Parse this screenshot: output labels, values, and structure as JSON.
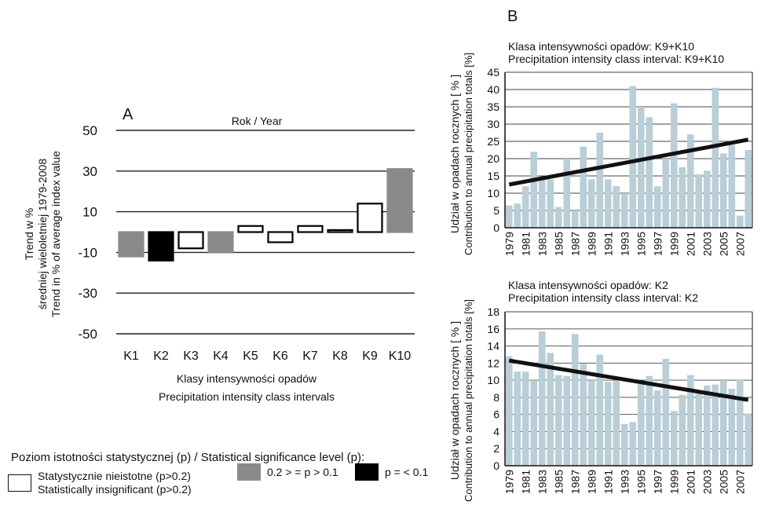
{
  "panel_labels": {
    "a": "A",
    "b": "B"
  },
  "legend": {
    "title": "Poziom istotności statystycznej (p) / Statistical significance level (p):",
    "items": [
      {
        "label_pl": "Statystycznie nieistotne (p>0.2)",
        "label_en": "Statistically insignificant (p>0.2)",
        "swatch": "#ffffff"
      },
      {
        "label": "0.2 > = p > 0.1",
        "swatch": "#8a8a8a"
      },
      {
        "label": "p = < 0.1",
        "swatch": "#000000"
      }
    ]
  },
  "chart_data": [
    {
      "type": "bar",
      "panel": "A",
      "title": "Rok / Year",
      "ylabel_lines": [
        "Trend w %",
        "średniej wieloletniej 1979-2008",
        "Trend in % of average index value"
      ],
      "xlabel_lines": [
        "Klasy intensywności opadów",
        "Precipitation intensity class intervals"
      ],
      "categories": [
        "K1",
        "K2",
        "K3",
        "K4",
        "K5",
        "K6",
        "K7",
        "K8",
        "K9",
        "K10"
      ],
      "values": [
        -12,
        -14,
        -8,
        -10,
        3,
        -5,
        3,
        1,
        14,
        31
      ],
      "significance": [
        "grey",
        "black",
        "white",
        "grey",
        "white",
        "white",
        "white",
        "white",
        "white",
        "grey"
      ],
      "colors": {
        "white": "#ffffff",
        "grey": "#8a8a8a",
        "black": "#000000"
      },
      "ylim": [
        -50,
        50
      ],
      "yticks": [
        50,
        30,
        10,
        -10,
        -30,
        -50
      ],
      "grid": true
    },
    {
      "type": "bar",
      "panel": "B-top",
      "title_lines": [
        "Klasa intensywności opadów: K9+K10",
        "Precipitation intensity class interval: K9+K10"
      ],
      "ylabel_lines": [
        "Udział w opadach rocznych [ % ]",
        "Contribution to annual precipitation totals [%]"
      ],
      "x": [
        1979,
        1980,
        1981,
        1982,
        1983,
        1984,
        1985,
        1986,
        1987,
        1988,
        1989,
        1990,
        1991,
        1992,
        1993,
        1994,
        1995,
        1996,
        1997,
        1998,
        1999,
        2000,
        2001,
        2002,
        2003,
        2004,
        2005,
        2006,
        2007,
        2008
      ],
      "x_tick_labels": [
        "1979",
        "1981",
        "1983",
        "1985",
        "1987",
        "1989",
        "1991",
        "1993",
        "1995",
        "1997",
        "1999",
        "2001",
        "2003",
        "2005",
        "2007"
      ],
      "values": [
        6.5,
        7,
        12,
        22,
        14,
        14,
        6,
        20,
        5,
        23.5,
        14,
        27.5,
        14,
        12,
        10,
        41,
        35,
        32,
        12,
        20,
        36,
        17.5,
        27,
        15.5,
        16.5,
        40.5,
        21.5,
        24,
        3.5,
        22.5
      ],
      "trend": {
        "start": 12.5,
        "end": 25.5
      },
      "ylim": [
        0,
        45
      ],
      "yticks": [
        0,
        5,
        10,
        15,
        20,
        25,
        30,
        35,
        40,
        45
      ],
      "bar_color": "#b9ced6",
      "grid": true
    },
    {
      "type": "bar",
      "panel": "B-bottom",
      "title_lines": [
        "Klasa intensywności opadów: K2",
        "Precipitation intensity class interval: K2"
      ],
      "ylabel_lines": [
        "Udział w opadach rocznych [ % ]",
        "Contribution to annual precipitation totals [%]"
      ],
      "x": [
        1979,
        1980,
        1981,
        1982,
        1983,
        1984,
        1985,
        1986,
        1987,
        1988,
        1989,
        1990,
        1991,
        1992,
        1993,
        1994,
        1995,
        1996,
        1997,
        1998,
        1999,
        2000,
        2001,
        2002,
        2003,
        2004,
        2005,
        2006,
        2007,
        2008
      ],
      "x_tick_labels": [
        "1979",
        "1981",
        "1983",
        "1985",
        "1987",
        "1989",
        "1991",
        "1993",
        "1995",
        "1997",
        "1999",
        "2001",
        "2003",
        "2005",
        "2007"
      ],
      "values": [
        12.8,
        11,
        11,
        10,
        15.7,
        13.2,
        10.6,
        10.5,
        15.4,
        11.9,
        10,
        13,
        9.8,
        9.9,
        4.9,
        5.1,
        9.9,
        10.5,
        8.8,
        12.5,
        6.4,
        8.3,
        10.6,
        8.7,
        9.4,
        9.5,
        10,
        9,
        10.1,
        6.1
      ],
      "trend": {
        "start": 12.3,
        "end": 7.7
      },
      "ylim": [
        0,
        18
      ],
      "yticks": [
        0,
        2,
        4,
        6,
        8,
        10,
        12,
        14,
        16,
        18
      ],
      "bar_color": "#b9ced6",
      "grid": true
    }
  ]
}
